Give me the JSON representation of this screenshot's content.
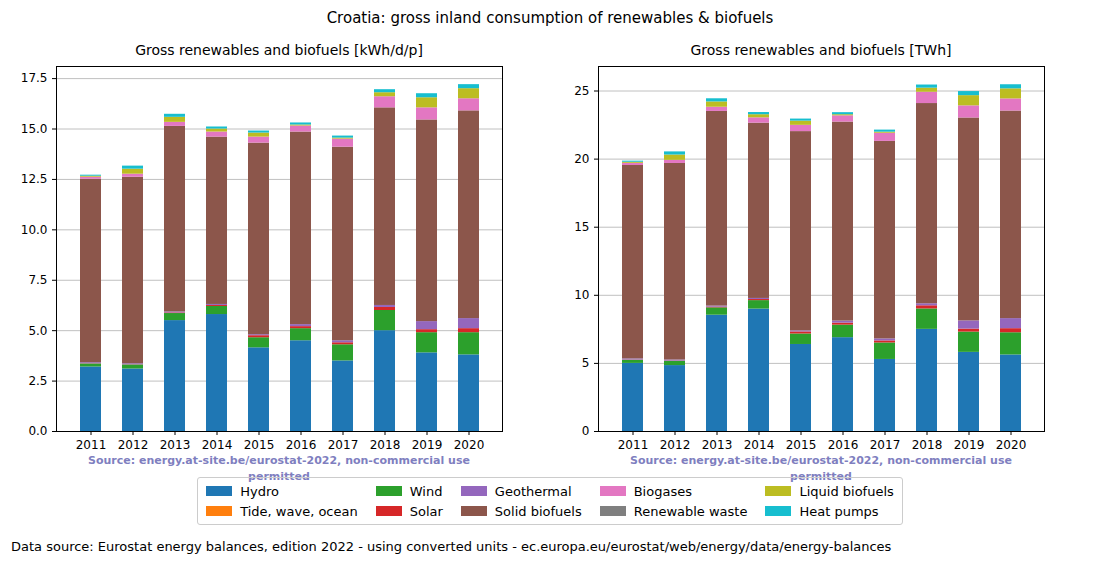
{
  "figure": {
    "title": "Croatia: gross inland consumption of renewables & biofuels",
    "note": "Data source: Eurostat energy balances, edition 2022 - using converted units - ec.europa.eu/eurostat/web/energy/data/energy-balances"
  },
  "chart_data": [
    {
      "type": "bar",
      "title": "Gross renewables and biofuels [kWh/d/p]",
      "annotation": "Source: energy.at-site.be/eurostat-2022, non-commercial use permitted",
      "stacked": true,
      "grid": true,
      "legend": "bottom",
      "categories": [
        "2011",
        "2012",
        "2013",
        "2014",
        "2015",
        "2016",
        "2017",
        "2018",
        "2019",
        "2020"
      ],
      "ylim": [
        0,
        18.1
      ],
      "yticks": [
        {
          "value": 0,
          "label": "0.0"
        },
        2.5,
        {
          "value": 5,
          "label": "5.0"
        },
        7.5,
        {
          "value": 10,
          "label": "10.0"
        },
        12.5,
        {
          "value": 15,
          "label": "15.0"
        },
        17.5
      ],
      "series": [
        {
          "name": "Hydro",
          "color": "#1f77b4",
          "values": [
            3.2,
            3.1,
            5.5,
            5.8,
            4.15,
            4.5,
            3.5,
            5.0,
            3.9,
            3.8
          ]
        },
        {
          "name": "Tide, wave, ocean",
          "color": "#ff7f0e",
          "values": [
            0,
            0,
            0,
            0,
            0,
            0,
            0,
            0,
            0,
            0
          ]
        },
        {
          "name": "Wind",
          "color": "#2ca02c",
          "values": [
            0.15,
            0.2,
            0.35,
            0.4,
            0.5,
            0.6,
            0.8,
            1.0,
            1.0,
            1.1
          ]
        },
        {
          "name": "Solar",
          "color": "#d62728",
          "values": [
            0.01,
            0.01,
            0.03,
            0.05,
            0.1,
            0.1,
            0.1,
            0.15,
            0.15,
            0.2
          ]
        },
        {
          "name": "Geothermal",
          "color": "#9467bd",
          "values": [
            0.05,
            0.05,
            0.05,
            0.05,
            0.05,
            0.1,
            0.1,
            0.1,
            0.4,
            0.5
          ]
        },
        {
          "name": "Solid biofuels",
          "color": "#8c564b",
          "values": [
            9.1,
            9.25,
            9.2,
            8.3,
            9.5,
            9.55,
            9.6,
            9.8,
            10.0,
            10.3
          ]
        },
        {
          "name": "Biogases",
          "color": "#e377c2",
          "values": [
            0.1,
            0.15,
            0.2,
            0.25,
            0.3,
            0.3,
            0.4,
            0.55,
            0.6,
            0.6
          ]
        },
        {
          "name": "Renewable waste",
          "color": "#7f7f7f",
          "values": [
            0,
            0,
            0,
            0,
            0,
            0,
            0,
            0,
            0,
            0
          ]
        },
        {
          "name": "Liquid biofuels",
          "color": "#bcbd22",
          "values": [
            0.05,
            0.25,
            0.25,
            0.15,
            0.2,
            0.05,
            0.05,
            0.2,
            0.5,
            0.5
          ]
        },
        {
          "name": "Heat pumps",
          "color": "#17becf",
          "values": [
            0.05,
            0.15,
            0.15,
            0.1,
            0.1,
            0.1,
            0.1,
            0.15,
            0.2,
            0.2
          ]
        }
      ]
    },
    {
      "type": "bar",
      "title": "Gross renewables and biofuels [TWh]",
      "annotation": "Source: energy.at-site.be/eurostat-2022, non-commercial use permitted",
      "stacked": true,
      "grid": true,
      "legend": "bottom",
      "categories": [
        "2011",
        "2012",
        "2013",
        "2014",
        "2015",
        "2016",
        "2017",
        "2018",
        "2019",
        "2020"
      ],
      "ylim": [
        0,
        26.8
      ],
      "yticks": [
        0,
        5,
        10,
        15,
        20,
        25
      ],
      "series": [
        {
          "name": "Hydro",
          "color": "#1f77b4",
          "values": [
            5.0,
            4.84,
            8.54,
            8.99,
            6.39,
            6.89,
            5.29,
            7.5,
            5.81,
            5.62
          ]
        },
        {
          "name": "Tide, wave, ocean",
          "color": "#ff7f0e",
          "values": [
            0,
            0,
            0,
            0,
            0,
            0,
            0,
            0,
            0,
            0
          ]
        },
        {
          "name": "Wind",
          "color": "#2ca02c",
          "values": [
            0.23,
            0.31,
            0.54,
            0.62,
            0.77,
            0.92,
            1.21,
            1.5,
            1.49,
            1.63
          ]
        },
        {
          "name": "Solar",
          "color": "#d62728",
          "values": [
            0.02,
            0.02,
            0.05,
            0.08,
            0.15,
            0.15,
            0.15,
            0.23,
            0.22,
            0.3
          ]
        },
        {
          "name": "Geothermal",
          "color": "#9467bd",
          "values": [
            0.08,
            0.08,
            0.08,
            0.08,
            0.08,
            0.15,
            0.15,
            0.15,
            0.6,
            0.74
          ]
        },
        {
          "name": "Solid biofuels",
          "color": "#8c564b",
          "values": [
            14.2,
            14.43,
            14.29,
            12.87,
            14.63,
            14.61,
            14.5,
            14.7,
            14.9,
            15.24
          ]
        },
        {
          "name": "Biogases",
          "color": "#e377c2",
          "values": [
            0.16,
            0.23,
            0.31,
            0.39,
            0.46,
            0.46,
            0.6,
            0.83,
            0.89,
            0.89
          ]
        },
        {
          "name": "Renewable waste",
          "color": "#7f7f7f",
          "values": [
            0,
            0,
            0,
            0,
            0,
            0,
            0,
            0,
            0,
            0
          ]
        },
        {
          "name": "Liquid biofuels",
          "color": "#bcbd22",
          "values": [
            0.08,
            0.39,
            0.39,
            0.23,
            0.31,
            0.08,
            0.08,
            0.3,
            0.75,
            0.74
          ]
        },
        {
          "name": "Heat pumps",
          "color": "#17becf",
          "values": [
            0.08,
            0.23,
            0.23,
            0.16,
            0.15,
            0.15,
            0.15,
            0.23,
            0.3,
            0.3
          ]
        }
      ]
    }
  ]
}
